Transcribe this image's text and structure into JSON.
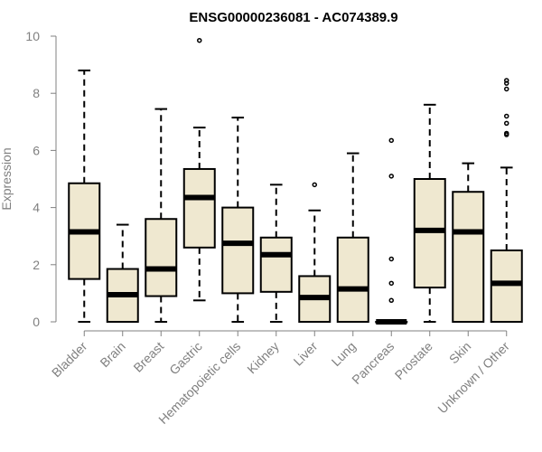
{
  "chart_data": {
    "type": "box",
    "title": "ENSG00000236081 - AC074389.9",
    "xlabel": "",
    "ylabel": "Expression",
    "ylim": [
      0,
      10
    ],
    "yticks": [
      0,
      2,
      4,
      6,
      8,
      10
    ],
    "grid": false,
    "categories": [
      "Bladder",
      "Brain",
      "Breast",
      "Gastric",
      "Hematopoietic cells",
      "Kidney",
      "Liver",
      "Lung",
      "Pancreas",
      "Prostate",
      "Skin",
      "Unknown / Other"
    ],
    "boxes": [
      {
        "category": "Bladder",
        "whisker_low": 0,
        "q1": 1.5,
        "median": 3.15,
        "q3": 4.85,
        "whisker_high": 8.8,
        "outliers": []
      },
      {
        "category": "Brain",
        "whisker_low": 0,
        "q1": 0,
        "median": 0.95,
        "q3": 1.85,
        "whisker_high": 3.4,
        "outliers": []
      },
      {
        "category": "Breast",
        "whisker_low": 0,
        "q1": 0.9,
        "median": 1.85,
        "q3": 3.6,
        "whisker_high": 7.45,
        "outliers": []
      },
      {
        "category": "Gastric",
        "whisker_low": 0.75,
        "q1": 2.6,
        "median": 4.35,
        "q3": 5.35,
        "whisker_high": 6.8,
        "outliers": [
          9.85
        ]
      },
      {
        "category": "Hematopoietic cells",
        "whisker_low": 0,
        "q1": 1.0,
        "median": 2.75,
        "q3": 4.0,
        "whisker_high": 7.15,
        "outliers": []
      },
      {
        "category": "Kidney",
        "whisker_low": 0,
        "q1": 1.05,
        "median": 2.35,
        "q3": 2.95,
        "whisker_high": 4.8,
        "outliers": []
      },
      {
        "category": "Liver",
        "whisker_low": 0,
        "q1": 0,
        "median": 0.85,
        "q3": 1.6,
        "whisker_high": 3.9,
        "outliers": [
          4.8
        ]
      },
      {
        "category": "Lung",
        "whisker_low": 0,
        "q1": 0,
        "median": 1.15,
        "q3": 2.95,
        "whisker_high": 5.9,
        "outliers": []
      },
      {
        "category": "Pancreas",
        "whisker_low": 0,
        "q1": 0,
        "median": 0,
        "q3": 0,
        "whisker_high": 0,
        "outliers": [
          0.75,
          1.35,
          2.2,
          5.1,
          6.35
        ]
      },
      {
        "category": "Prostate",
        "whisker_low": 0,
        "q1": 1.2,
        "median": 3.2,
        "q3": 5.0,
        "whisker_high": 7.6,
        "outliers": []
      },
      {
        "category": "Skin",
        "whisker_low": 0,
        "q1": 0,
        "median": 3.15,
        "q3": 4.55,
        "whisker_high": 5.55,
        "outliers": []
      },
      {
        "category": "Unknown / Other",
        "whisker_low": 0,
        "q1": 0,
        "median": 1.35,
        "q3": 2.5,
        "whisker_high": 5.4,
        "outliers": [
          6.55,
          6.6,
          6.95,
          7.2,
          8.15,
          8.35,
          8.45
        ]
      }
    ],
    "box_fill": "#efe8d0",
    "stroke": "#000000",
    "axis_color": "#808080"
  }
}
